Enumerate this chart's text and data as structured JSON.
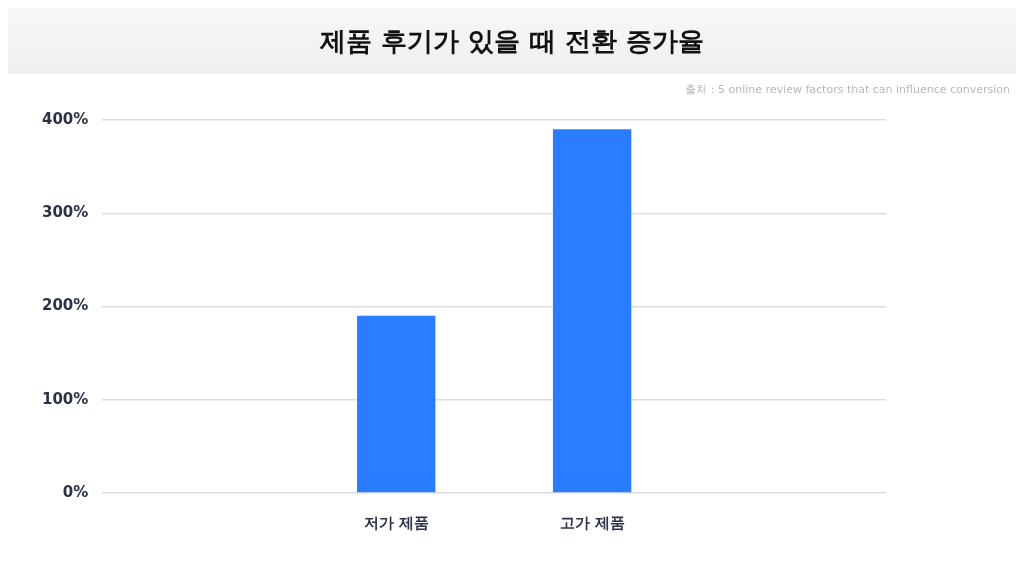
{
  "chart_data": {
    "type": "bar",
    "title": "제품 후기가 있을 때 전환 증가율",
    "annotations": [
      "출처 : 5 online review factors that can influence conversion"
    ],
    "categories": [
      null,
      "저가 제품",
      "고가 제품",
      null
    ],
    "values": [
      null,
      190,
      390,
      null
    ],
    "color": "#2a7dff",
    "ylim": [
      0,
      400
    ],
    "yticks": [
      {
        "value": 0,
        "label": "0%"
      },
      {
        "value": 100,
        "label": "100%"
      },
      {
        "value": 200,
        "label": "200%"
      },
      {
        "value": 300,
        "label": "300%"
      },
      {
        "value": 400,
        "label": "400%"
      }
    ],
    "grid": "y"
  }
}
